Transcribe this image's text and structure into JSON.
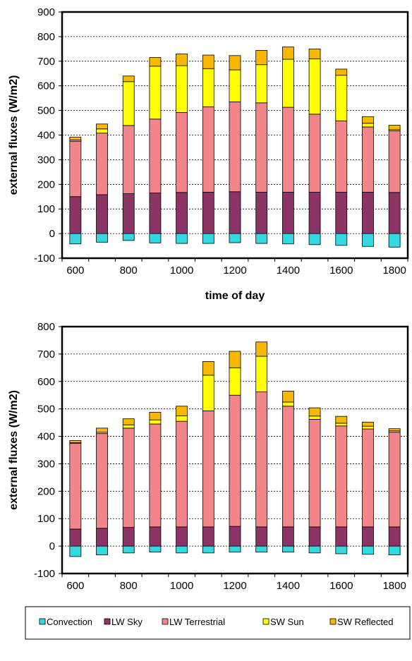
{
  "colors": {
    "Convection": "#33D8E0",
    "LW Sky": "#8B3465",
    "LW Terrestrial": "#F2868A",
    "SW Sun": "#FFFF00",
    "SW Reflected": "#F8B800"
  },
  "legend": {
    "placement": "bottom",
    "items": [
      "Convection",
      "LW Sky",
      "LW Terrestrial",
      "SW Sun",
      "SW Reflected"
    ]
  },
  "chart_data": [
    {
      "type": "bar",
      "stacked": true,
      "grid": true,
      "xlabel": "time of day",
      "ylabel": "external fluxes (W/m2)",
      "ylim": [
        -100,
        900
      ],
      "yticks": [
        -100,
        0,
        100,
        200,
        300,
        400,
        500,
        600,
        700,
        800,
        900
      ],
      "categories": [
        "600",
        "700",
        "800",
        "900",
        "1000",
        "1100",
        "1200",
        "1300",
        "1400",
        "1500",
        "1600",
        "1700",
        "1800"
      ],
      "xtick_labels": [
        "600",
        "800",
        "1000",
        "1200",
        "1400",
        "1600",
        "1800"
      ],
      "series": [
        {
          "name": "Convection",
          "values": [
            -42,
            -35,
            -28,
            -38,
            -40,
            -40,
            -37,
            -40,
            -42,
            -45,
            -48,
            -52,
            -55
          ]
        },
        {
          "name": "LW Sky",
          "values": [
            150,
            158,
            162,
            165,
            167,
            168,
            170,
            168,
            168,
            168,
            168,
            168,
            167
          ]
        },
        {
          "name": "LW Terrestrial",
          "values": [
            225,
            250,
            277,
            300,
            325,
            347,
            365,
            363,
            345,
            317,
            290,
            265,
            250
          ]
        },
        {
          "name": "SW Sun",
          "values": [
            5,
            17,
            178,
            215,
            190,
            155,
            130,
            155,
            195,
            225,
            185,
            15,
            5
          ]
        },
        {
          "name": "SW Reflected",
          "values": [
            12,
            20,
            23,
            35,
            48,
            55,
            58,
            58,
            50,
            40,
            25,
            27,
            18
          ]
        }
      ]
    },
    {
      "type": "bar",
      "stacked": true,
      "grid": true,
      "xlabel": "time of day",
      "ylabel": "external fluxes (W/m2)",
      "ylim": [
        -100,
        800
      ],
      "yticks": [
        -100,
        0,
        100,
        200,
        300,
        400,
        500,
        600,
        700,
        800
      ],
      "categories": [
        "600",
        "700",
        "800",
        "900",
        "1000",
        "1100",
        "1200",
        "1300",
        "1400",
        "1500",
        "1600",
        "1700",
        "1800"
      ],
      "xtick_labels": [
        "600",
        "800",
        "1000",
        "1200",
        "1400",
        "1600",
        "1800"
      ],
      "series": [
        {
          "name": "Convection",
          "values": [
            -38,
            -32,
            -25,
            -22,
            -25,
            -25,
            -22,
            -22,
            -22,
            -25,
            -28,
            -30,
            -32
          ]
        },
        {
          "name": "LW Sky",
          "values": [
            62,
            65,
            68,
            70,
            70,
            70,
            72,
            70,
            70,
            70,
            70,
            70,
            70
          ]
        },
        {
          "name": "LW Terrestrial",
          "values": [
            313,
            345,
            362,
            375,
            385,
            423,
            478,
            492,
            440,
            392,
            368,
            357,
            345
          ]
        },
        {
          "name": "SW Sun",
          "values": [
            2,
            5,
            12,
            15,
            20,
            130,
            100,
            130,
            15,
            12,
            10,
            10,
            5
          ]
        },
        {
          "name": "SW Reflected",
          "values": [
            8,
            15,
            22,
            28,
            35,
            50,
            60,
            52,
            40,
            30,
            25,
            15,
            8
          ]
        }
      ]
    }
  ]
}
